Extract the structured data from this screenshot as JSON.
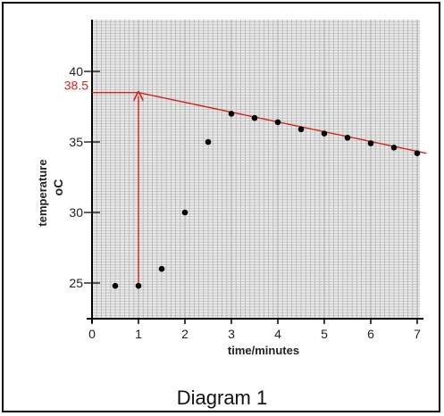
{
  "caption": "Diagram 1",
  "chart_data": {
    "type": "scatter",
    "xlabel": "time/minutes",
    "ylabel": "temperature",
    "ylabel_unit": "oC",
    "xlim": [
      0,
      7
    ],
    "ylim": [
      22.5,
      43
    ],
    "x_ticks": [
      0,
      1,
      2,
      3,
      4,
      5,
      6,
      7
    ],
    "y_ticks": [
      25,
      30,
      35,
      40
    ],
    "grid": true,
    "points": [
      {
        "x": 0.5,
        "y": 24.8
      },
      {
        "x": 1.0,
        "y": 24.8
      },
      {
        "x": 1.5,
        "y": 26.0
      },
      {
        "x": 2.0,
        "y": 30.0
      },
      {
        "x": 2.5,
        "y": 35.0
      },
      {
        "x": 3.0,
        "y": 37.0
      },
      {
        "x": 3.5,
        "y": 36.7
      },
      {
        "x": 4.0,
        "y": 36.4
      },
      {
        "x": 4.5,
        "y": 35.9
      },
      {
        "x": 5.0,
        "y": 35.6
      },
      {
        "x": 5.5,
        "y": 35.3
      },
      {
        "x": 6.0,
        "y": 34.9
      },
      {
        "x": 6.5,
        "y": 34.6
      },
      {
        "x": 7.0,
        "y": 34.2
      }
    ],
    "trend_line": {
      "x": [
        1.0,
        7.2
      ],
      "y": [
        38.5,
        34.2
      ]
    },
    "extrapolation": {
      "x": 1.0,
      "y": 38.5,
      "label": "38.5"
    },
    "colors": {
      "points": "#000000",
      "annotation": "#d0261f",
      "grid": "#b5b5b5"
    }
  }
}
